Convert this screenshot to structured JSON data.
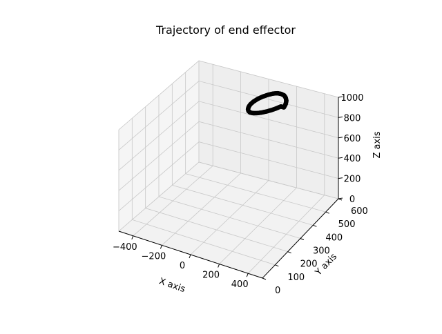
{
  "chart_data": {
    "type": "scatter",
    "projection": "3d",
    "title": "Trajectory of end effector",
    "xlabel": "X axis",
    "ylabel": "Y axis",
    "zlabel": "Z axis",
    "xlim": [
      -500,
      500
    ],
    "ylim": [
      0,
      600
    ],
    "zlim": [
      0,
      1000
    ],
    "xticks": [
      -400,
      -200,
      0,
      200,
      400
    ],
    "yticks": [
      0,
      100,
      200,
      300,
      400,
      500,
      600
    ],
    "zticks": [
      0,
      200,
      400,
      600,
      800,
      1000
    ],
    "xtick_labels": [
      "−400",
      "−200",
      "0",
      "200",
      "400"
    ],
    "ytick_labels": [
      "0",
      "100",
      "200",
      "300",
      "400",
      "500",
      "600"
    ],
    "ztick_labels": [
      "0",
      "200",
      "400",
      "600",
      "800",
      "1000"
    ],
    "grid": true,
    "series": [
      {
        "marker_color": "#000000",
        "shape": "closed loop (ellipse)",
        "x": [
          220,
          217,
          207,
          191,
          170,
          145,
          119,
          92,
          65,
          40,
          20,
          6,
          0,
          3,
          13,
          29,
          50,
          75,
          101,
          128,
          155,
          180,
          200,
          214,
          220
        ],
        "y": [
          480,
          497,
          513,
          526,
          536,
          540,
          540,
          535,
          525,
          511,
          495,
          477,
          460,
          443,
          427,
          414,
          404,
          400,
          400,
          405,
          415,
          429,
          445,
          463,
          480
        ],
        "z": [
          950,
          960,
          969,
          976,
          980,
          980,
          977,
          970,
          960,
          950,
          940,
          930,
          922,
          918,
          918,
          921,
          928,
          937,
          947,
          957,
          966,
          973,
          978,
          979,
          950
        ]
      }
    ]
  }
}
